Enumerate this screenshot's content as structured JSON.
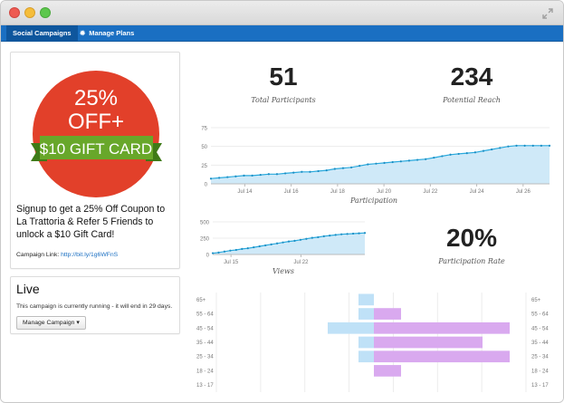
{
  "window": {
    "icons": [
      "close",
      "minimize",
      "zoom",
      "expand-icon"
    ]
  },
  "nav": {
    "tabs": [
      {
        "label": "Social Campaigns",
        "active": true
      },
      {
        "label": "Manage Plans",
        "icon": "gear-icon"
      }
    ]
  },
  "promo": {
    "badge": {
      "line1": "25%",
      "line2": "OFF+",
      "ribbon": "$10 GIFT CARD",
      "circle_color": "#e2402a",
      "ribbon_color": "#68a72a"
    },
    "text": "Signup to get a 25% Off Coupon to La Trattoria & Refer 5 Friends to unlock a $10 Gift Card!",
    "link_label": "Campaign Link:",
    "link_url": "http://bit.ly/1g6WFnS"
  },
  "live": {
    "title": "Live",
    "status": "This campaign is currently running - it will end in 29 days.",
    "button_label": "Manage Campaign"
  },
  "stats": {
    "participants": {
      "value": "51",
      "label": "Total Participants"
    },
    "reach": {
      "value": "234",
      "label": "Potential Reach"
    },
    "rate": {
      "value": "20%",
      "label": "Participation Rate"
    }
  },
  "chart_data": [
    {
      "type": "area",
      "title": "Participation",
      "ylim": [
        0,
        75
      ],
      "yticks": [
        "75",
        "50",
        "25",
        "0"
      ],
      "xticks": [
        "Jul 14",
        "Jul 16",
        "Jul 18",
        "Jul 20",
        "Jul 22",
        "Jul 24",
        "Jul 26"
      ],
      "series": [
        {
          "values": [
            7,
            8,
            9,
            10,
            11,
            11,
            12,
            13,
            13,
            14,
            15,
            16,
            16,
            17,
            18,
            20,
            21,
            22,
            24,
            26,
            27,
            28,
            29,
            30,
            31,
            32,
            33,
            35,
            37,
            39,
            40,
            41,
            42,
            44,
            46,
            48,
            50,
            51,
            51,
            51,
            51,
            51
          ]
        }
      ],
      "color": "#29a9dd"
    },
    {
      "type": "area",
      "title": "Views",
      "ylim": [
        0,
        500
      ],
      "yticks": [
        "500",
        "250",
        "0"
      ],
      "xticks": [
        "Jul 15",
        "Jul 22"
      ],
      "series": [
        {
          "values": [
            20,
            30,
            45,
            60,
            70,
            85,
            95,
            110,
            125,
            140,
            155,
            170,
            185,
            200,
            210,
            225,
            240,
            255,
            265,
            280,
            290,
            300,
            310,
            315,
            320,
            325,
            330
          ]
        }
      ],
      "color": "#29a9dd"
    },
    {
      "type": "bar",
      "title": "",
      "categories": [
        "65+",
        "55 - 64",
        "45 - 54",
        "35 - 44",
        "25 - 34",
        "18 - 24",
        "13 - 17"
      ],
      "series": [
        {
          "values": [
            0.5,
            0.5,
            1.5,
            0.5,
            0.5,
            0,
            0
          ]
        },
        {
          "values": [
            0,
            1,
            5,
            4,
            5,
            1,
            0
          ]
        }
      ],
      "colors": [
        "#bfe1f7",
        "#d9a9ef"
      ]
    }
  ]
}
